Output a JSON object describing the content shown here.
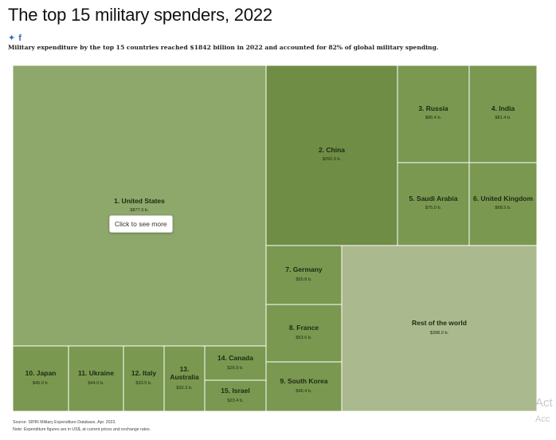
{
  "header": {
    "title": "The top 15 military spenders, 2022",
    "subtitle": "Military expenditure by the top 15 countries reached $1842 billion in 2022 and accounted for 82% of global military spending.",
    "social": [
      "twitter-icon",
      "facebook-icon"
    ]
  },
  "chart_data": {
    "type": "treemap",
    "title": "The top 15 military spenders, 2022",
    "units": "US$ billion",
    "items": [
      {
        "label": "1. United States",
        "value_text": "$877.0 b.",
        "value": 877.0,
        "color": "#8ea86b"
      },
      {
        "label": "2. China",
        "value_text": "$292.0 b.",
        "value": 292.0,
        "color": "#6f8d45"
      },
      {
        "label": "3. Russia",
        "value_text": "$86.4 b.",
        "value": 86.4,
        "color": "#7a9850"
      },
      {
        "label": "4. India",
        "value_text": "$81.4 b.",
        "value": 81.4,
        "color": "#7a9850"
      },
      {
        "label": "5. Saudi Arabia",
        "value_text": "$75.0 b.",
        "value": 75.0,
        "color": "#7a9850"
      },
      {
        "label": "6. United Kingdom",
        "value_text": "$68.5 b.",
        "value": 68.5,
        "color": "#7a9850"
      },
      {
        "label": "7. Germany",
        "value_text": "$55.8 b.",
        "value": 55.8,
        "color": "#7a9850"
      },
      {
        "label": "8. France",
        "value_text": "$53.6 b.",
        "value": 53.6,
        "color": "#7a9850"
      },
      {
        "label": "9. South Korea",
        "value_text": "$46.4 b.",
        "value": 46.4,
        "color": "#7a9850"
      },
      {
        "label": "10. Japan",
        "value_text": "$46.0 b.",
        "value": 46.0,
        "color": "#7a9850"
      },
      {
        "label": "11. Ukraine",
        "value_text": "$44.0 b.",
        "value": 44.0,
        "color": "#7a9850"
      },
      {
        "label": "12. Italy",
        "value_text": "$33.5 b.",
        "value": 33.5,
        "color": "#7a9850"
      },
      {
        "label": "13.\nAustralia",
        "value_text": "$32.3 b.",
        "value": 32.3,
        "color": "#7a9850"
      },
      {
        "label": "14. Canada",
        "value_text": "$26.9 b.",
        "value": 26.9,
        "color": "#7a9850"
      },
      {
        "label": "15. Israel",
        "value_text": "$23.4 b.",
        "value": 23.4,
        "color": "#7a9850"
      },
      {
        "label": "Rest of the world",
        "value_text": "$398.0 b.",
        "value": 398.0,
        "color": "#abb98e"
      }
    ]
  },
  "tooltip": {
    "text": "Click to see more"
  },
  "footer": {
    "source": "Source: SIPRI Military Expenditure Database, Apr. 2023.",
    "note": "Note: Expenditure figures are in US$, at current prices and exchange rates."
  },
  "watermark": {
    "line1": "Act",
    "line2": "Acc"
  }
}
